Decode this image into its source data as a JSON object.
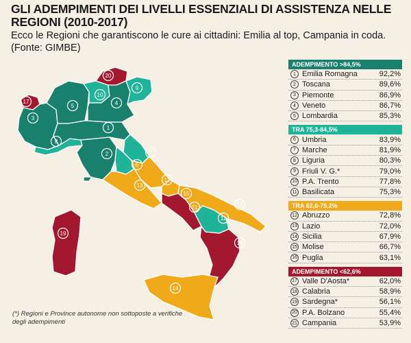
{
  "title": "GLI ADEMPIMENTI DEI LIVELLI ESSENZIALI DI ASSISTENZA NELLE REGIONI (2010-2017)",
  "subtitle": "Ecco le Regioni che garantiscono le cure ai cittadini: Emilia al top, Campania in coda. (Fonte: GIMBE)",
  "note": "(*) Regioni e Province autonome non sottoposte a verifiche degli adempimenti",
  "colors": {
    "dark_green": "#19806e",
    "light_green": "#1fb398",
    "orange": "#f0a919",
    "dark_red": "#a3182e",
    "background": "#f6efe3"
  },
  "legend": [
    {
      "header": "ADEMPIMENTO >84,5%",
      "color": "#19806e",
      "rows": [
        {
          "rank": "1",
          "name": "Emilia Romagna",
          "value": "92,2%"
        },
        {
          "rank": "2",
          "name": "Toscana",
          "value": "89,6%"
        },
        {
          "rank": "3",
          "name": "Piemonte",
          "value": "86,9%"
        },
        {
          "rank": "4",
          "name": "Veneto",
          "value": "86,7%"
        },
        {
          "rank": "5",
          "name": "Lombardia",
          "value": "85,3%"
        }
      ]
    },
    {
      "header": "TRA 75,3-84,5%",
      "color": "#1fb398",
      "rows": [
        {
          "rank": "6",
          "name": "Umbria",
          "value": "83,9%"
        },
        {
          "rank": "7",
          "name": "Marche",
          "value": "81,9%"
        },
        {
          "rank": "8",
          "name": "Liguria",
          "value": "80,3%"
        },
        {
          "rank": "9",
          "name": "Friuli V. G.*",
          "value": "79,0%"
        },
        {
          "rank": "10",
          "name": "P.A. Trento",
          "value": "77,8%"
        },
        {
          "rank": "11",
          "name": "Basilicata",
          "value": "75,3%"
        }
      ]
    },
    {
      "header": "TRA 62,6-75,2%",
      "color": "#f0a919",
      "rows": [
        {
          "rank": "12",
          "name": "Abruzzo",
          "value": "72,8%"
        },
        {
          "rank": "13",
          "name": "Lazio",
          "value": "72,0%"
        },
        {
          "rank": "14",
          "name": "Sicilia",
          "value": "67,9%"
        },
        {
          "rank": "15",
          "name": "Molise",
          "value": "66,7%"
        },
        {
          "rank": "16",
          "name": "Puglia",
          "value": "63,1%"
        }
      ]
    },
    {
      "header": "ADEMPIMENTO <62,6%",
      "color": "#a3182e",
      "rows": [
        {
          "rank": "17",
          "name": "Valle D'Aosta*",
          "value": "62,0%"
        },
        {
          "rank": "18",
          "name": "Calabria",
          "value": "58,9%"
        },
        {
          "rank": "19",
          "name": "Sardegna*",
          "value": "56,1%"
        },
        {
          "rank": "20",
          "name": "P.A. Bolzano",
          "value": "55,4%"
        },
        {
          "rank": "21",
          "name": "Campania",
          "value": "53,9%"
        }
      ]
    }
  ],
  "map_labels": [
    "1",
    "2",
    "3",
    "4",
    "5",
    "6",
    "7",
    "8",
    "9",
    "10",
    "11",
    "12",
    "13",
    "14",
    "15",
    "16",
    "17",
    "18",
    "19",
    "20",
    "21"
  ]
}
